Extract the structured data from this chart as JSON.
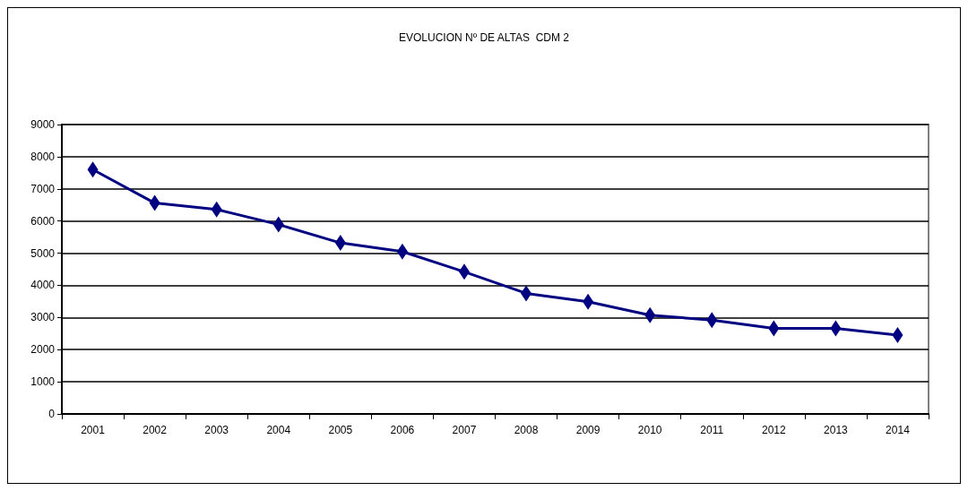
{
  "chart_data": {
    "type": "line",
    "title": "EVOLUCION Nº DE ALTAS  CDM 2",
    "categories": [
      "2001",
      "2002",
      "2003",
      "2004",
      "2005",
      "2006",
      "2007",
      "2008",
      "2009",
      "2010",
      "2011",
      "2012",
      "2013",
      "2014"
    ],
    "series": [
      {
        "color": "#000080",
        "values": [
          7600,
          6560,
          6360,
          5890,
          5320,
          5050,
          4420,
          3750,
          3490,
          3070,
          2920,
          2660,
          2660,
          2450
        ]
      }
    ],
    "ylim": [
      0,
      9000
    ],
    "yticks": [
      0,
      1000,
      2000,
      3000,
      4000,
      5000,
      6000,
      7000,
      8000,
      9000
    ],
    "grid": "y",
    "marker": "diamond",
    "line_style": "solid"
  }
}
